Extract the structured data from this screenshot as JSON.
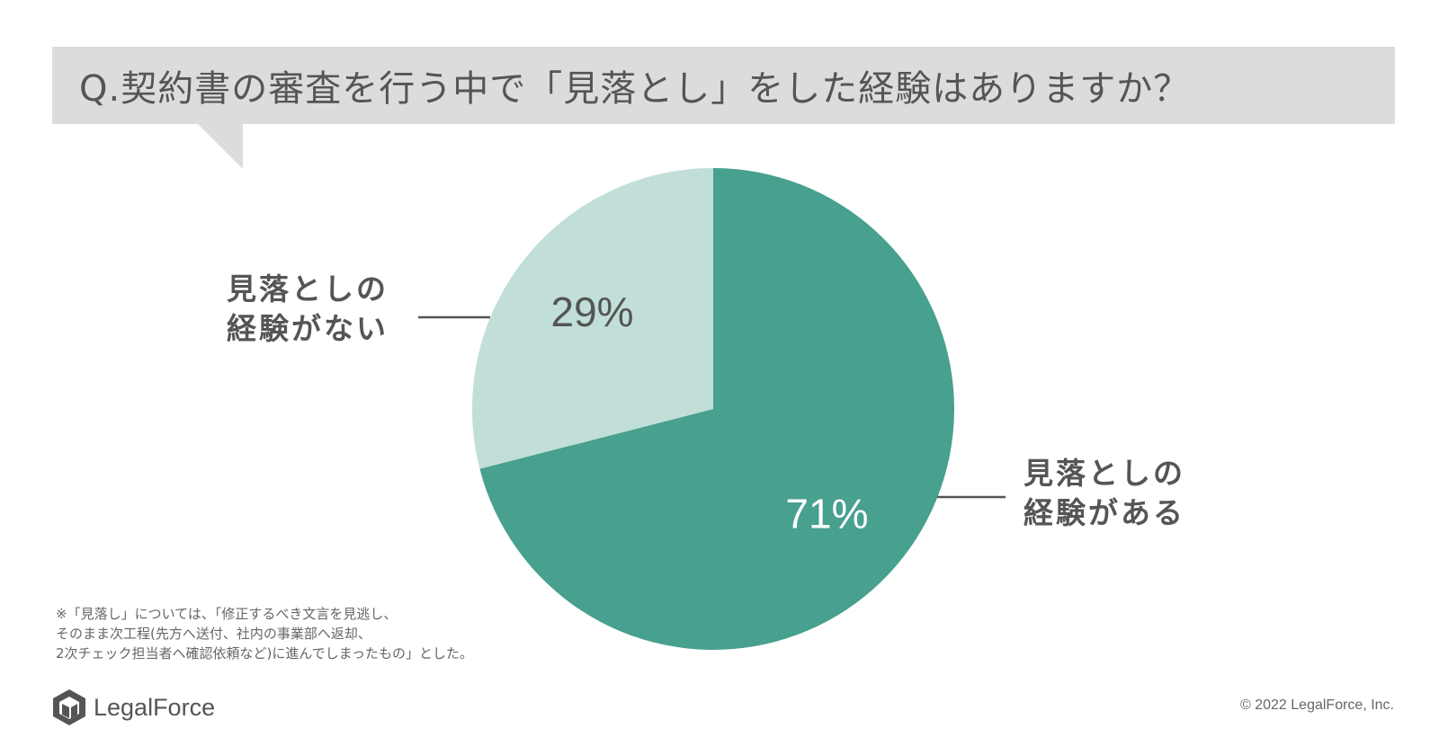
{
  "title": "Q.契約書の審査を行う中で「見落とし」をした経験はありますか？",
  "chart_data": {
    "type": "pie",
    "slices": [
      {
        "label_line1": "見落としの",
        "label_line2": "経験がある",
        "value": 71,
        "value_label": "71%",
        "color": "#48a08e"
      },
      {
        "label_line1": "見落としの",
        "label_line2": "経験がない",
        "value": 29,
        "value_label": "29%",
        "color": "#c1dfd8"
      }
    ]
  },
  "footnote": {
    "line1": "※「見落し」については、「修正するべき文言を見逃し、",
    "line2": "そのまま次工程(先方へ送付、社内の事業部へ返却、",
    "line3": "2次チェック担当者へ確認依頼など)に進んでしまったもの」とした。"
  },
  "logo": {
    "text": "LegalForce",
    "icon": "legalforce-logo-icon"
  },
  "copyright": "© 2022 LegalForce, Inc."
}
